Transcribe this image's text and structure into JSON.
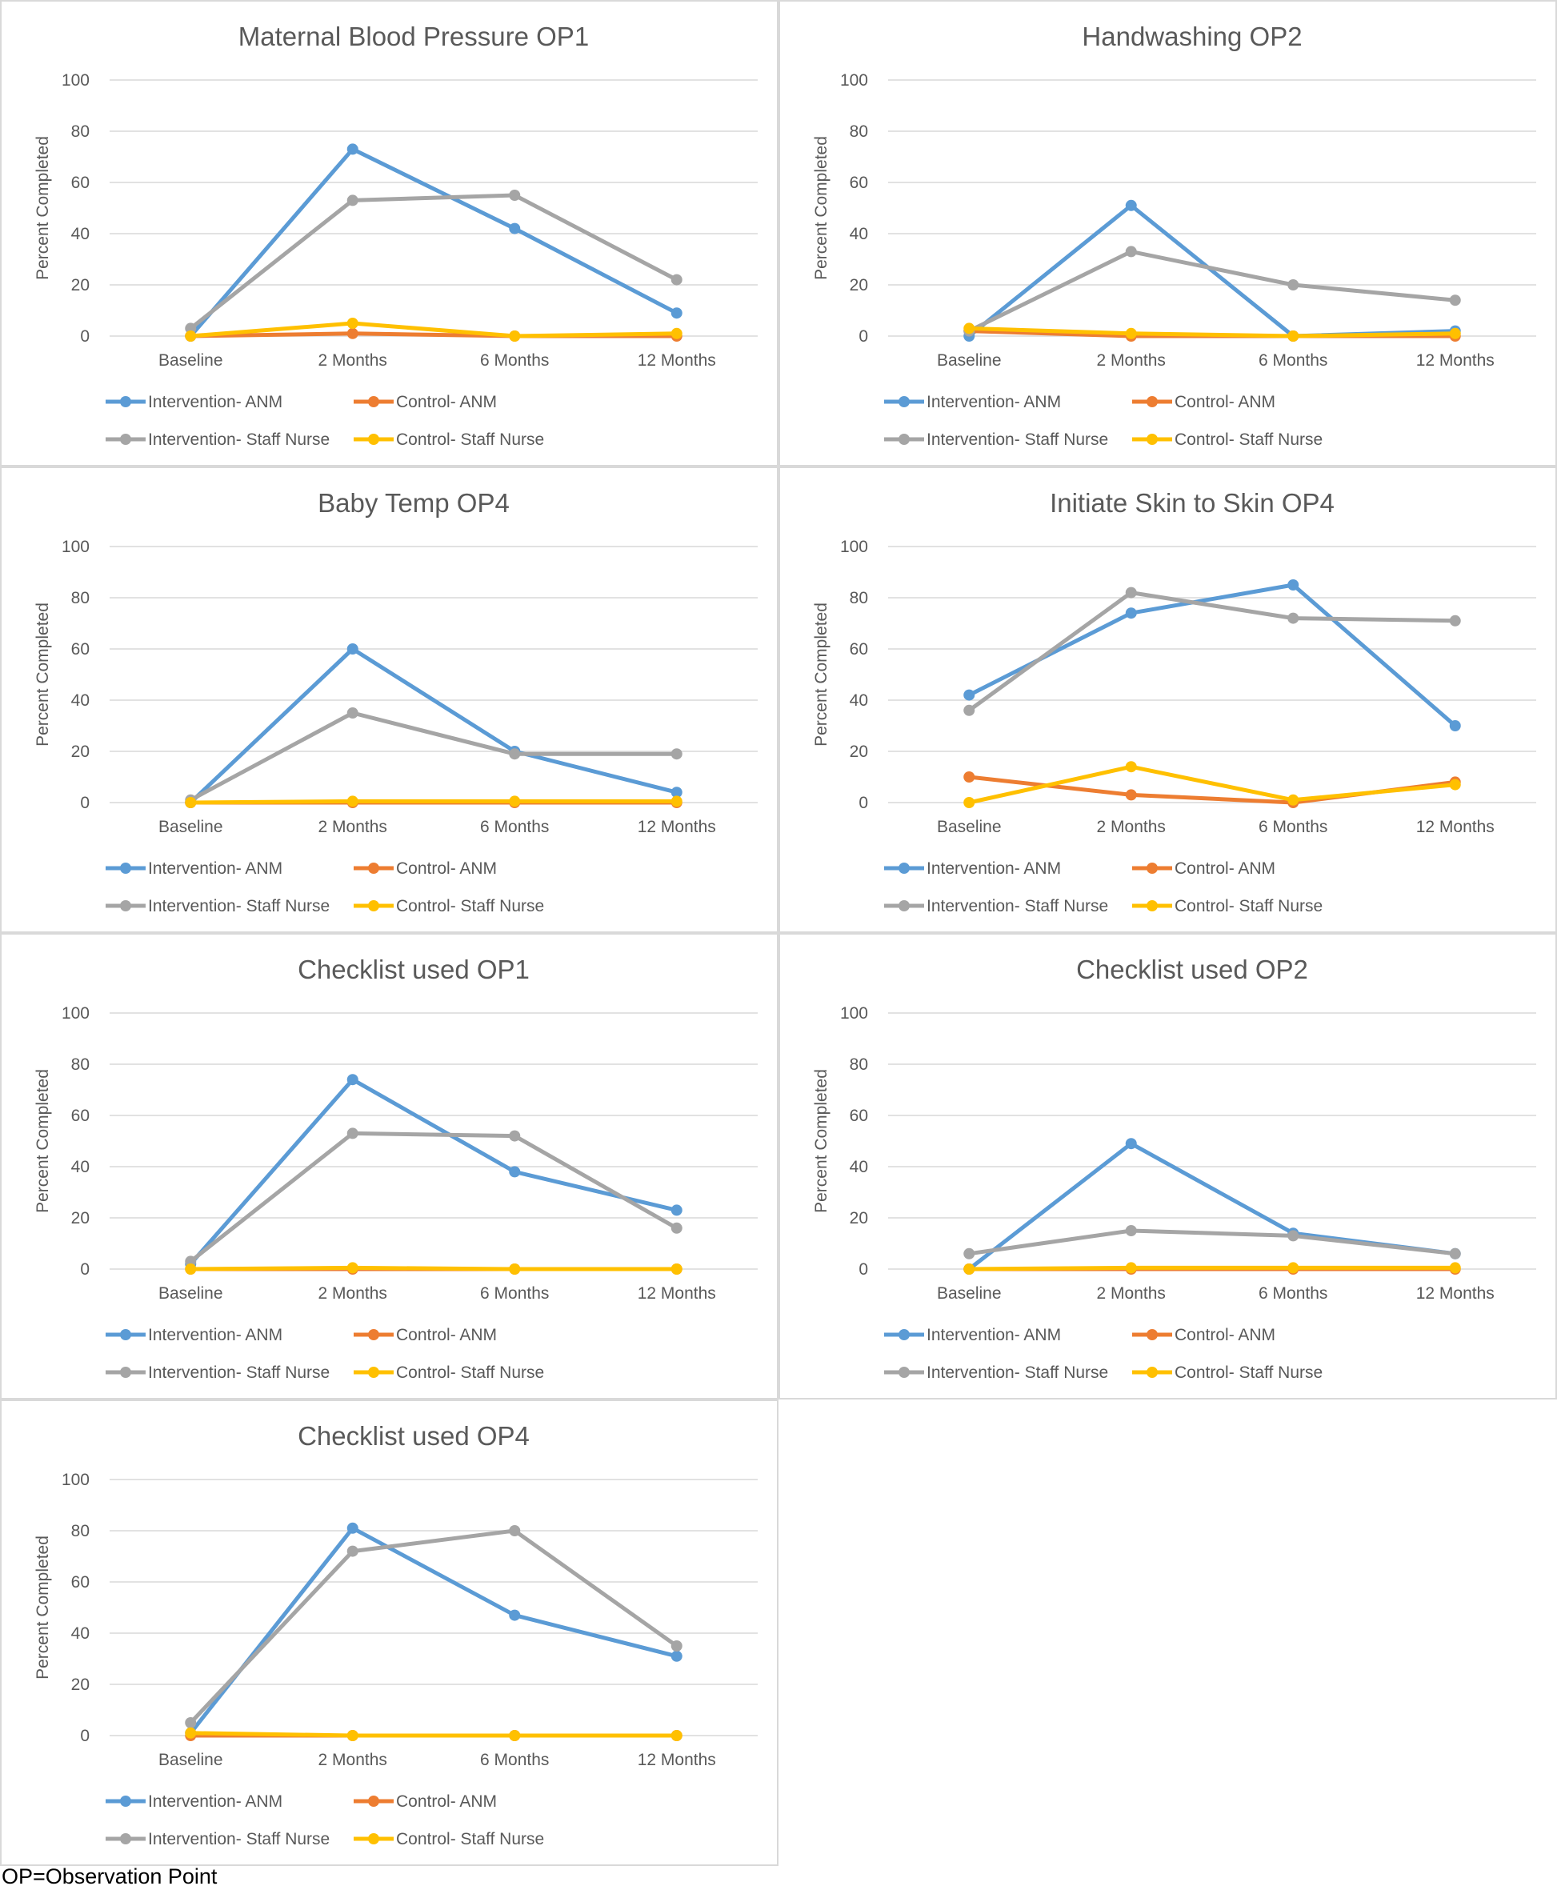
{
  "colors": {
    "intervention_anm": "#5b9bd5",
    "control_anm": "#ed7d31",
    "intervention_staff_nurse": "#a5a5a5",
    "control_staff_nurse": "#ffc000",
    "gridline": "#d9d9d9",
    "text": "#595959"
  },
  "footnote": "OP=Observation Point",
  "chart_data": [
    {
      "type": "line",
      "title": "Maternal Blood Pressure OP1",
      "ylabel": "Percent Completed",
      "xlabel": "",
      "ylim": [
        0,
        100
      ],
      "yticks": [
        "0",
        "20",
        "40",
        "60",
        "80",
        "100"
      ],
      "categories": [
        "Baseline",
        "2 Months",
        "6 Months",
        "12 Months"
      ],
      "legend_position": "bottom",
      "series": [
        {
          "name": "Intervention- ANM",
          "color_key": "intervention_anm",
          "values": [
            0,
            73,
            42,
            9
          ]
        },
        {
          "name": "Control- ANM",
          "color_key": "control_anm",
          "values": [
            0,
            1,
            0,
            0
          ]
        },
        {
          "name": "Intervention- Staff Nurse",
          "color_key": "intervention_staff_nurse",
          "values": [
            3,
            53,
            55,
            22
          ]
        },
        {
          "name": "Control- Staff Nurse",
          "color_key": "control_staff_nurse",
          "values": [
            0,
            5,
            0,
            1
          ]
        }
      ]
    },
    {
      "type": "line",
      "title": "Handwashing OP2",
      "ylabel": "Percent Completed",
      "xlabel": "",
      "ylim": [
        0,
        100
      ],
      "yticks": [
        "0",
        "20",
        "40",
        "60",
        "80",
        "100"
      ],
      "categories": [
        "Baseline",
        "2 Months",
        "6 Months",
        "12 Months"
      ],
      "legend_position": "bottom",
      "series": [
        {
          "name": "Intervention- ANM",
          "color_key": "intervention_anm",
          "values": [
            0,
            51,
            0,
            2
          ]
        },
        {
          "name": "Control- ANM",
          "color_key": "control_anm",
          "values": [
            2,
            0,
            0,
            0
          ]
        },
        {
          "name": "Intervention- Staff Nurse",
          "color_key": "intervention_staff_nurse",
          "values": [
            2,
            33,
            20,
            14
          ]
        },
        {
          "name": "Control- Staff Nurse",
          "color_key": "control_staff_nurse",
          "values": [
            3,
            1,
            0,
            1
          ]
        }
      ]
    },
    {
      "type": "line",
      "title": "Baby Temp OP4",
      "ylabel": "Percent Completed",
      "xlabel": "",
      "ylim": [
        0,
        100
      ],
      "yticks": [
        "0",
        "20",
        "40",
        "60",
        "80",
        "100"
      ],
      "categories": [
        "Baseline",
        "2 Months",
        "6 Months",
        "12 Months"
      ],
      "legend_position": "bottom",
      "series": [
        {
          "name": "Intervention- ANM",
          "color_key": "intervention_anm",
          "values": [
            0,
            60,
            20,
            4
          ]
        },
        {
          "name": "Control- ANM",
          "color_key": "control_anm",
          "values": [
            0,
            0,
            0,
            0
          ]
        },
        {
          "name": "Intervention- Staff Nurse",
          "color_key": "intervention_staff_nurse",
          "values": [
            1,
            35,
            19,
            19
          ]
        },
        {
          "name": "Control- Staff Nurse",
          "color_key": "control_staff_nurse",
          "values": [
            0,
            0.5,
            0.5,
            0.5
          ]
        }
      ]
    },
    {
      "type": "line",
      "title": "Initiate Skin to Skin OP4",
      "ylabel": "Percent Completed",
      "xlabel": "",
      "ylim": [
        0,
        100
      ],
      "yticks": [
        "0",
        "20",
        "40",
        "60",
        "80",
        "100"
      ],
      "categories": [
        "Baseline",
        "2 Months",
        "6 Months",
        "12 Months"
      ],
      "legend_position": "bottom",
      "series": [
        {
          "name": "Intervention- ANM",
          "color_key": "intervention_anm",
          "values": [
            42,
            74,
            85,
            30
          ]
        },
        {
          "name": "Control- ANM",
          "color_key": "control_anm",
          "values": [
            10,
            3,
            0,
            8
          ]
        },
        {
          "name": "Intervention- Staff Nurse",
          "color_key": "intervention_staff_nurse",
          "values": [
            36,
            82,
            72,
            71
          ]
        },
        {
          "name": "Control- Staff Nurse",
          "color_key": "control_staff_nurse",
          "values": [
            0,
            14,
            1,
            7
          ]
        }
      ]
    },
    {
      "type": "line",
      "title": "Checklist used OP1",
      "ylabel": "Percent Completed",
      "xlabel": "",
      "ylim": [
        0,
        100
      ],
      "yticks": [
        "0",
        "20",
        "40",
        "60",
        "80",
        "100"
      ],
      "categories": [
        "Baseline",
        "2 Months",
        "6 Months",
        "12 Months"
      ],
      "legend_position": "bottom",
      "series": [
        {
          "name": "Intervention- ANM",
          "color_key": "intervention_anm",
          "values": [
            2,
            74,
            38,
            23
          ]
        },
        {
          "name": "Control- ANM",
          "color_key": "control_anm",
          "values": [
            0,
            0,
            0,
            0
          ]
        },
        {
          "name": "Intervention- Staff Nurse",
          "color_key": "intervention_staff_nurse",
          "values": [
            3,
            53,
            52,
            16
          ]
        },
        {
          "name": "Control- Staff Nurse",
          "color_key": "control_staff_nurse",
          "values": [
            0,
            0.5,
            0,
            0
          ]
        }
      ]
    },
    {
      "type": "line",
      "title": "Checklist used OP2",
      "ylabel": "Percent Completed",
      "xlabel": "",
      "ylim": [
        0,
        100
      ],
      "yticks": [
        "0",
        "20",
        "40",
        "60",
        "80",
        "100"
      ],
      "categories": [
        "Baseline",
        "2 Months",
        "6 Months",
        "12 Months"
      ],
      "legend_position": "bottom",
      "series": [
        {
          "name": "Intervention- ANM",
          "color_key": "intervention_anm",
          "values": [
            0,
            49,
            14,
            6
          ]
        },
        {
          "name": "Control- ANM",
          "color_key": "control_anm",
          "values": [
            0,
            0,
            0,
            0
          ]
        },
        {
          "name": "Intervention- Staff Nurse",
          "color_key": "intervention_staff_nurse",
          "values": [
            6,
            15,
            13,
            6
          ]
        },
        {
          "name": "Control- Staff Nurse",
          "color_key": "control_staff_nurse",
          "values": [
            0,
            0.5,
            0.5,
            0.5
          ]
        }
      ]
    },
    {
      "type": "line",
      "title": "Checklist used OP4",
      "ylabel": "Percent Completed",
      "xlabel": "",
      "ylim": [
        0,
        100
      ],
      "yticks": [
        "0",
        "20",
        "40",
        "60",
        "80",
        "100"
      ],
      "categories": [
        "Baseline",
        "2 Months",
        "6 Months",
        "12 Months"
      ],
      "legend_position": "bottom",
      "series": [
        {
          "name": "Intervention- ANM",
          "color_key": "intervention_anm",
          "values": [
            1,
            81,
            47,
            31
          ]
        },
        {
          "name": "Control- ANM",
          "color_key": "control_anm",
          "values": [
            0,
            0,
            0,
            0
          ]
        },
        {
          "name": "Intervention- Staff Nurse",
          "color_key": "intervention_staff_nurse",
          "values": [
            5,
            72,
            80,
            35
          ]
        },
        {
          "name": "Control- Staff Nurse",
          "color_key": "control_staff_nurse",
          "values": [
            1,
            0,
            0,
            0
          ]
        }
      ]
    }
  ]
}
